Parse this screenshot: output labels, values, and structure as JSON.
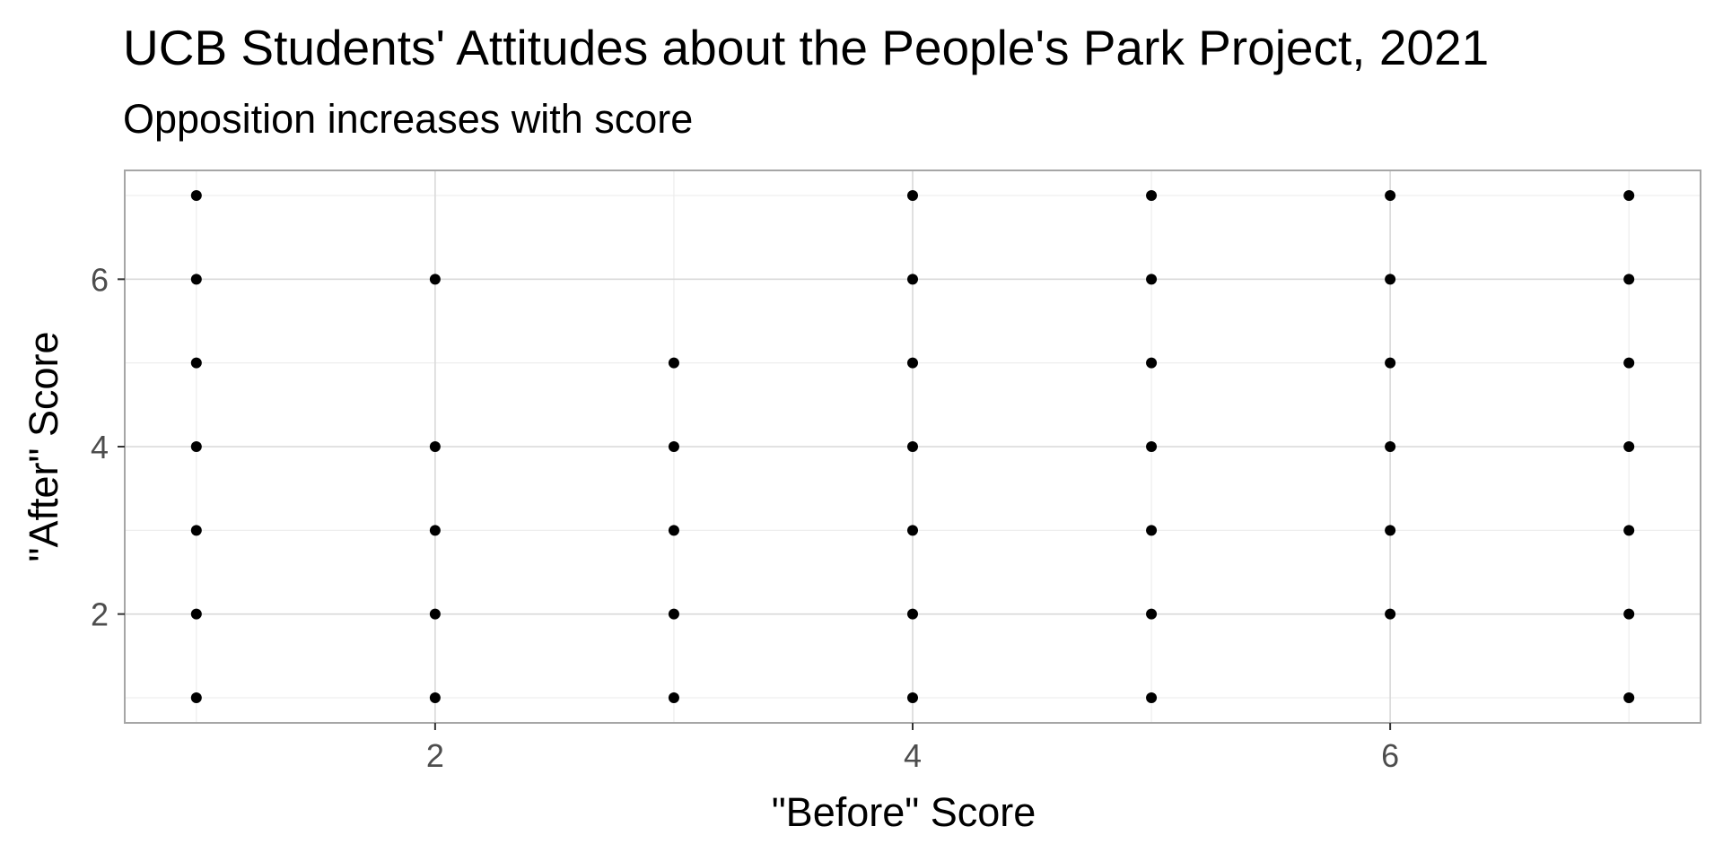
{
  "chart_data": {
    "type": "scatter",
    "title": "UCB Students' Attitudes about the People's Park Project, 2021",
    "subtitle": "Opposition increases with score",
    "xlabel": "\"Before\" Score",
    "ylabel": "\"After\" Score",
    "xlim": [
      0.7,
      7.3
    ],
    "ylim": [
      0.7,
      7.3
    ],
    "x_ticks": [
      2,
      4,
      6
    ],
    "y_ticks": [
      2,
      4,
      6
    ],
    "x_minor_ticks": [
      1,
      3,
      5,
      7
    ],
    "y_minor_ticks": [
      1,
      3,
      5,
      7
    ],
    "grid": true,
    "point_color": "#000000",
    "points": [
      {
        "x": 1,
        "y": 1
      },
      {
        "x": 1,
        "y": 2
      },
      {
        "x": 1,
        "y": 3
      },
      {
        "x": 1,
        "y": 4
      },
      {
        "x": 1,
        "y": 5
      },
      {
        "x": 1,
        "y": 6
      },
      {
        "x": 1,
        "y": 7
      },
      {
        "x": 2,
        "y": 1
      },
      {
        "x": 2,
        "y": 2
      },
      {
        "x": 2,
        "y": 3
      },
      {
        "x": 2,
        "y": 4
      },
      {
        "x": 2,
        "y": 6
      },
      {
        "x": 3,
        "y": 1
      },
      {
        "x": 3,
        "y": 2
      },
      {
        "x": 3,
        "y": 3
      },
      {
        "x": 3,
        "y": 4
      },
      {
        "x": 3,
        "y": 5
      },
      {
        "x": 4,
        "y": 1
      },
      {
        "x": 4,
        "y": 2
      },
      {
        "x": 4,
        "y": 3
      },
      {
        "x": 4,
        "y": 4
      },
      {
        "x": 4,
        "y": 5
      },
      {
        "x": 4,
        "y": 6
      },
      {
        "x": 4,
        "y": 7
      },
      {
        "x": 5,
        "y": 1
      },
      {
        "x": 5,
        "y": 2
      },
      {
        "x": 5,
        "y": 3
      },
      {
        "x": 5,
        "y": 4
      },
      {
        "x": 5,
        "y": 5
      },
      {
        "x": 5,
        "y": 6
      },
      {
        "x": 5,
        "y": 7
      },
      {
        "x": 6,
        "y": 2
      },
      {
        "x": 6,
        "y": 3
      },
      {
        "x": 6,
        "y": 4
      },
      {
        "x": 6,
        "y": 5
      },
      {
        "x": 6,
        "y": 6
      },
      {
        "x": 6,
        "y": 7
      },
      {
        "x": 7,
        "y": 1
      },
      {
        "x": 7,
        "y": 2
      },
      {
        "x": 7,
        "y": 3
      },
      {
        "x": 7,
        "y": 4
      },
      {
        "x": 7,
        "y": 5
      },
      {
        "x": 7,
        "y": 6
      },
      {
        "x": 7,
        "y": 7
      }
    ]
  }
}
